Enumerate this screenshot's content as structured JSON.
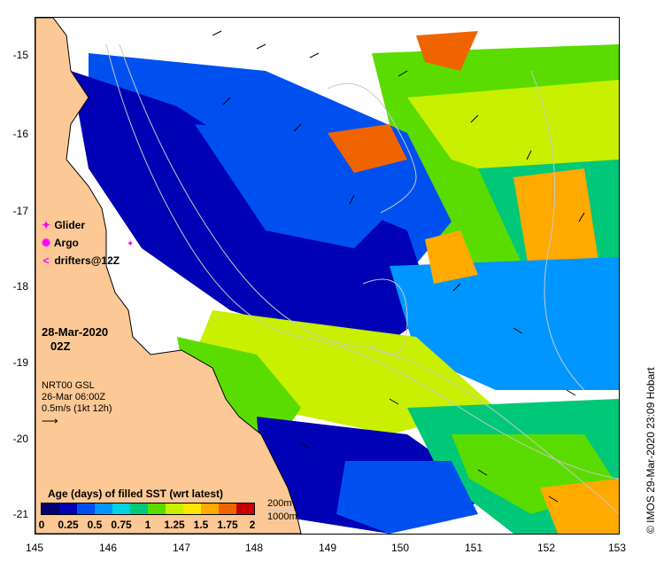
{
  "map": {
    "lat_ticks": [
      "-15",
      "-16",
      "-17",
      "-18",
      "-19",
      "-20",
      "-21"
    ],
    "lon_ticks": [
      "145",
      "146",
      "147",
      "148",
      "149",
      "150",
      "151",
      "152",
      "153"
    ],
    "lat_range": [
      -21.2,
      -14.55
    ],
    "lon_range": [
      145,
      153
    ]
  },
  "legend": {
    "glider": {
      "symbol": "✦",
      "label": "Glider",
      "color": "#ff00ff"
    },
    "argo": {
      "symbol": "✺",
      "label": "Argo",
      "color": "#ff00ff"
    },
    "drifters": {
      "symbol": "<",
      "label": "drifters@12Z",
      "color": "#ff00ff"
    }
  },
  "date": {
    "line1": "28-Mar-2020",
    "line2": "02Z"
  },
  "current_info": {
    "line1": "NRT00 GSL",
    "line2": "26-Mar 06:00Z",
    "line3": "0.5m/s (1kt 12h)"
  },
  "colorbar": {
    "title": "Age (days) of filled SST (wrt latest)",
    "ticks": [
      "0",
      "0.25",
      "0.5",
      "0.75",
      "1",
      "1.25",
      "1.5",
      "1.75",
      "2"
    ],
    "colors": [
      "#00006e",
      "#0000b4",
      "#0050f0",
      "#0096ff",
      "#00d2e6",
      "#00c878",
      "#5adc00",
      "#c8f000",
      "#ffe600",
      "#ffaa00",
      "#f06400",
      "#c80000"
    ]
  },
  "depth_legend": {
    "line1": "200m",
    "line2": "1000m"
  },
  "credit": "© IMOS 29-Mar-2020 23:09 Hobart",
  "colors": {
    "land": "#fbc896",
    "no_data": "#ffffff",
    "contour": "#c8c8c8"
  }
}
